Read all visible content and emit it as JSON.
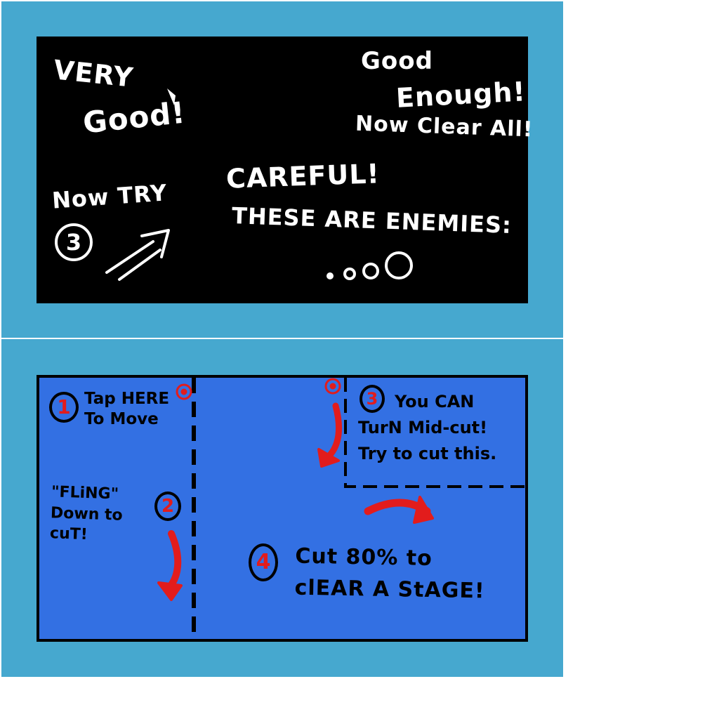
{
  "top_panel": {
    "very_good_line1": "VERY",
    "very_good_line2": "Good!",
    "now_try": "Now TRY",
    "step_number": "3",
    "good_enough_line1": "Good",
    "good_enough_line2": "Enough!",
    "good_enough_line3": "Now Clear All!",
    "careful": "CAREFUL!",
    "enemies_text": "THESE ARE ENEMIES:"
  },
  "bottom_panel": {
    "step1": {
      "number": "1",
      "text": "Tap HERE\nTo Move"
    },
    "step2": {
      "number": "2",
      "text": "\"FLiNG\"\nDown to\ncuT!"
    },
    "step3": {
      "number": "3",
      "text": "You CAN\nTurN Mid-cut!\nTry to cut this."
    },
    "step4": {
      "number": "4",
      "text": "Cut 80% to\nclEAR A StAGE!"
    }
  },
  "colors": {
    "background": "#46a8cf",
    "chalkboard": "#000000",
    "stage_blue": "#3370e3",
    "ink": "#000000",
    "marker_red": "#e21c1c",
    "chalk": "#ffffff"
  }
}
